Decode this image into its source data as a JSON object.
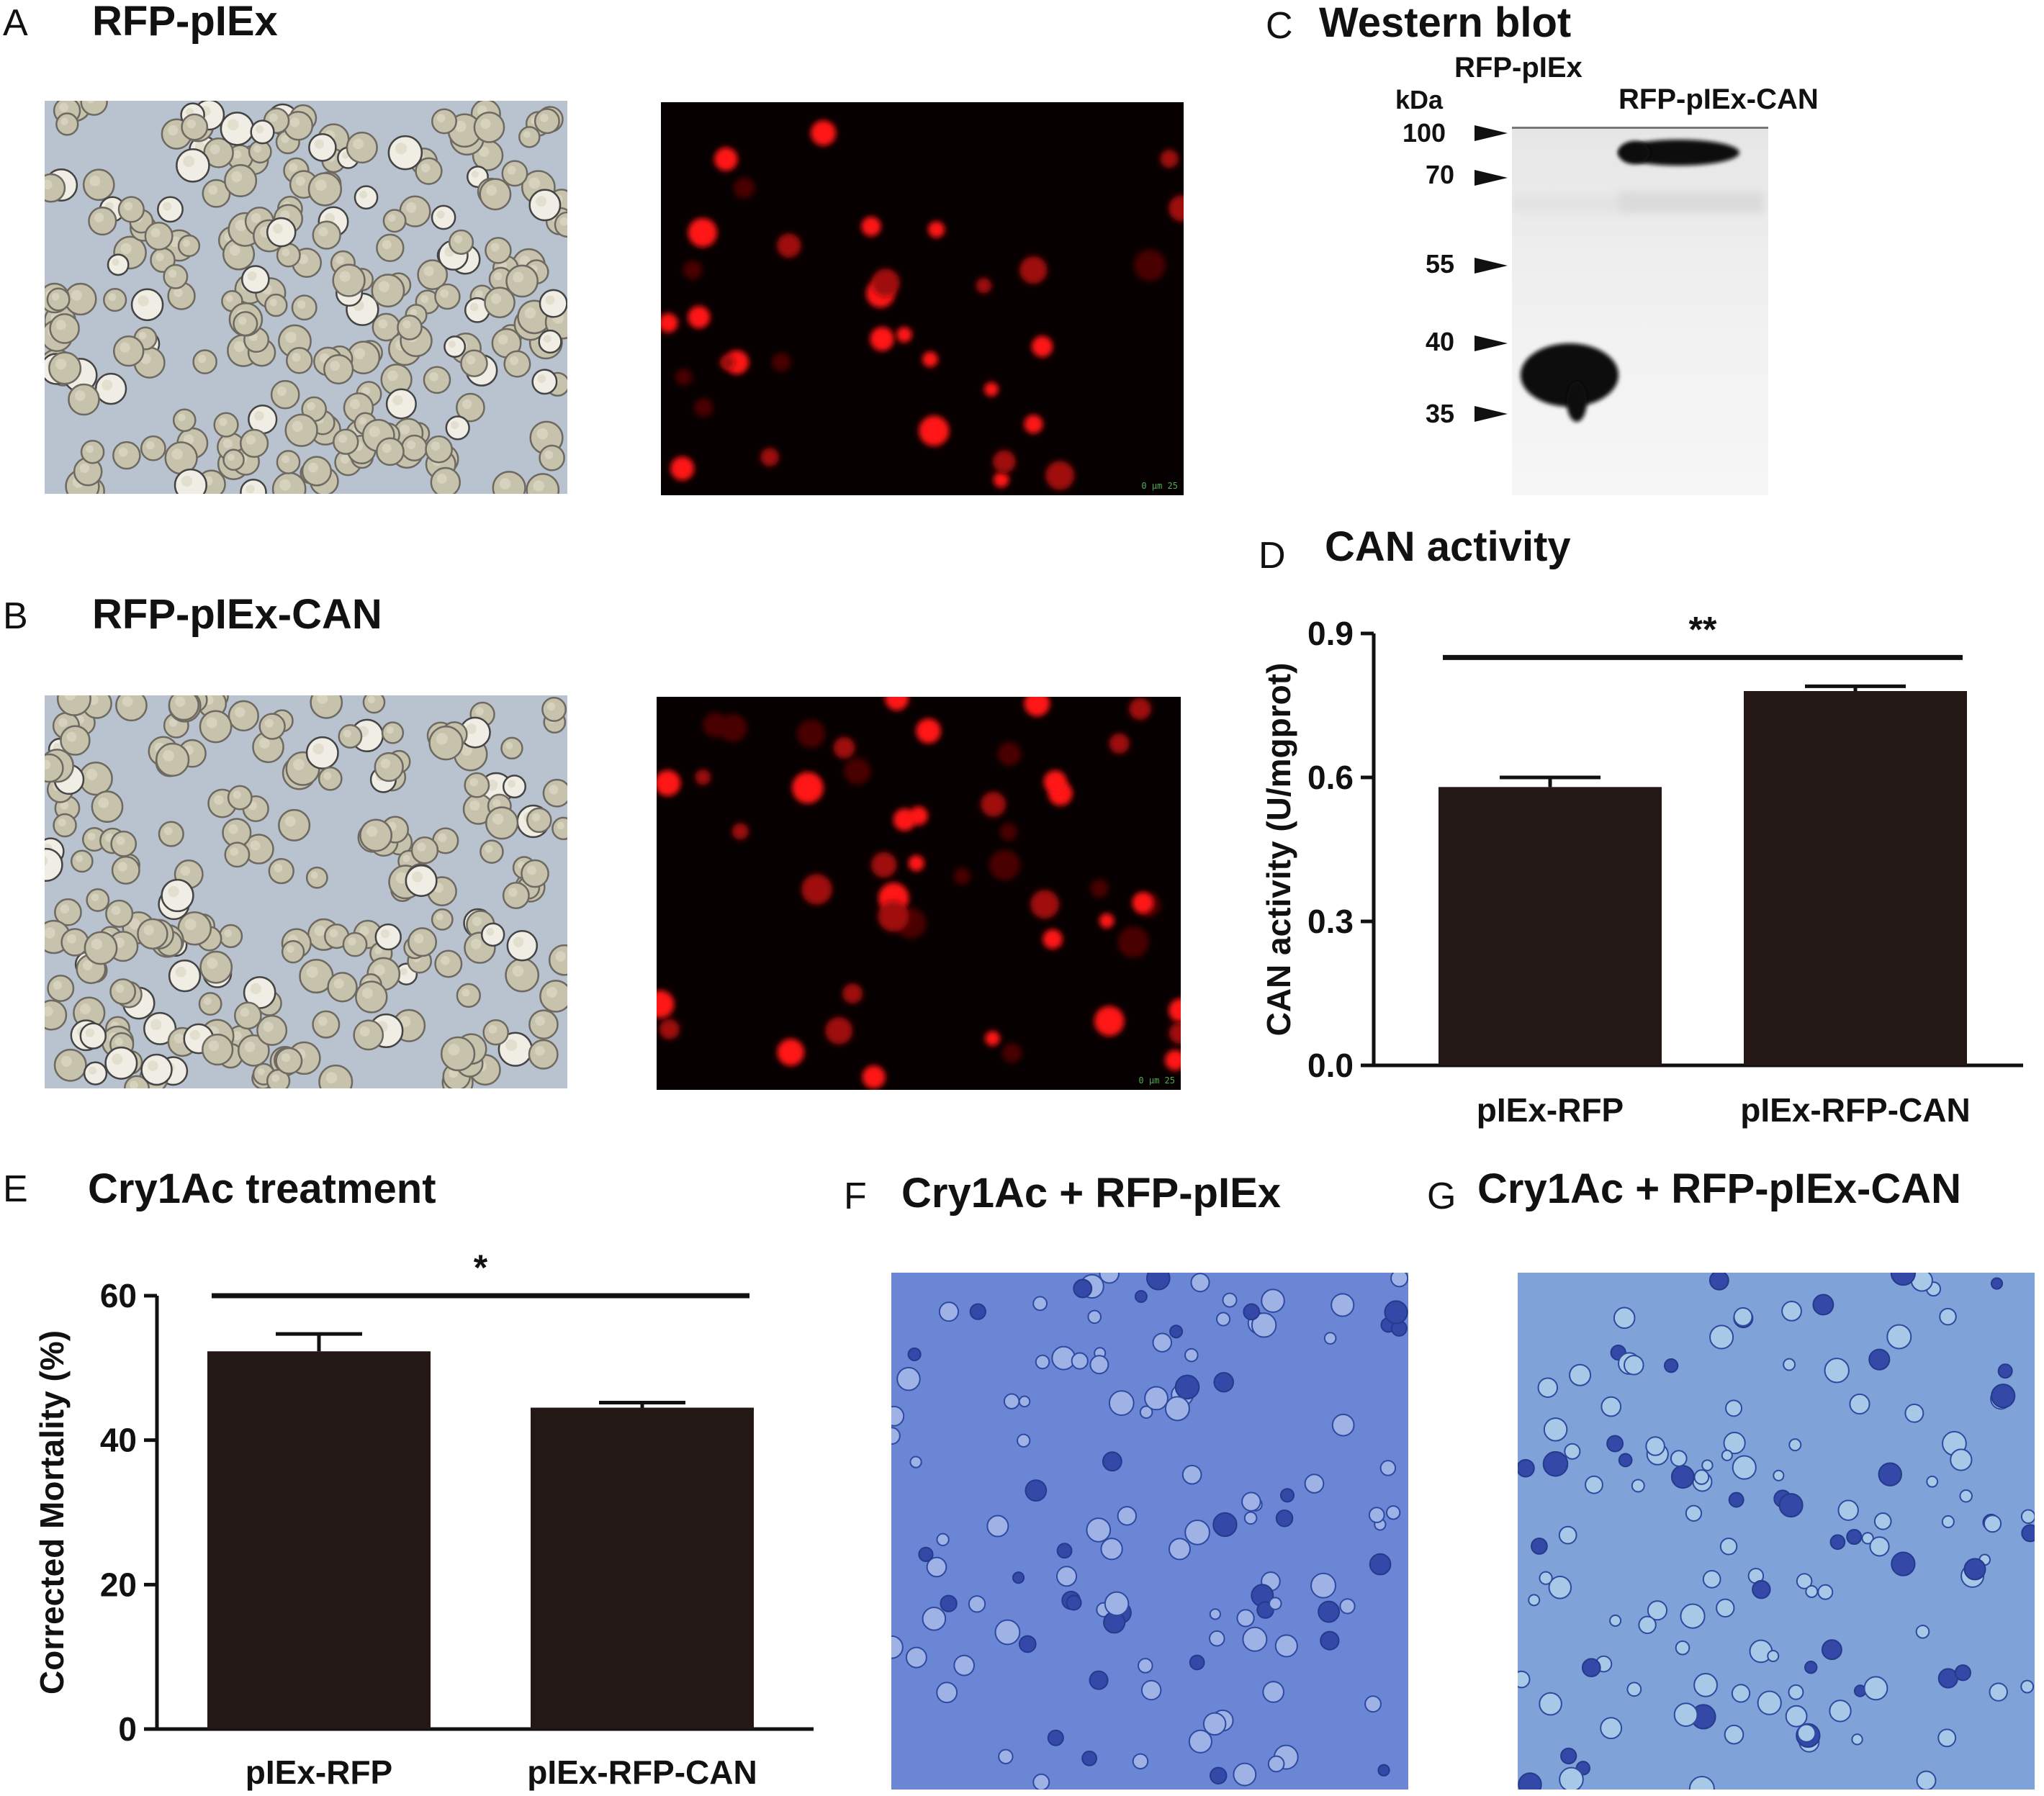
{
  "panels": {
    "A": {
      "letter": "A",
      "title": "RFP-pIEx"
    },
    "B": {
      "letter": "B",
      "title": "RFP-pIEx-CAN"
    },
    "C": {
      "letter": "C",
      "title": "Western blot"
    },
    "D": {
      "letter": "D",
      "title": "CAN activity"
    },
    "E": {
      "letter": "E",
      "title": "Cry1Ac treatment"
    },
    "F": {
      "letter": "F",
      "title": "Cry1Ac + RFP-pIEx"
    },
    "G": {
      "letter": "G",
      "title": "Cry1Ac + RFP-pIEx-CAN"
    }
  },
  "scale_label": "0 µm 25",
  "western_blot": {
    "unit": "kDa",
    "lane_labels": [
      "RFP-pIEx",
      "RFP-pIEx-CAN"
    ],
    "markers": [
      "100",
      "70",
      "55",
      "40",
      "35"
    ]
  },
  "chart_data": [
    {
      "panel": "D",
      "type": "bar",
      "categories": [
        "pIEx-RFP",
        "pIEx-RFP-CAN"
      ],
      "values": [
        0.58,
        0.78
      ],
      "errors": [
        0.02,
        0.01
      ],
      "ylabel": "CAN activity (U/mgprot)",
      "ylim": [
        0,
        0.9
      ],
      "yticks": [
        "0.0",
        "0.3",
        "0.6",
        "0.9"
      ],
      "ytick_values": [
        0,
        0.3,
        0.6,
        0.9
      ],
      "significance": "**",
      "bar_color": "#231815",
      "grid": false
    },
    {
      "panel": "E",
      "type": "bar",
      "categories": [
        "pIEx-RFP",
        "pIEx-RFP-CAN"
      ],
      "values": [
        52.3,
        44.5
      ],
      "errors": [
        2.4,
        0.7
      ],
      "ylabel": "Corrected Mortality (%)",
      "ylim": [
        0,
        60
      ],
      "yticks": [
        "0",
        "20",
        "40",
        "60"
      ],
      "ytick_values": [
        0,
        20,
        40,
        60
      ],
      "significance": "*",
      "bar_color": "#231815",
      "grid": false
    }
  ]
}
